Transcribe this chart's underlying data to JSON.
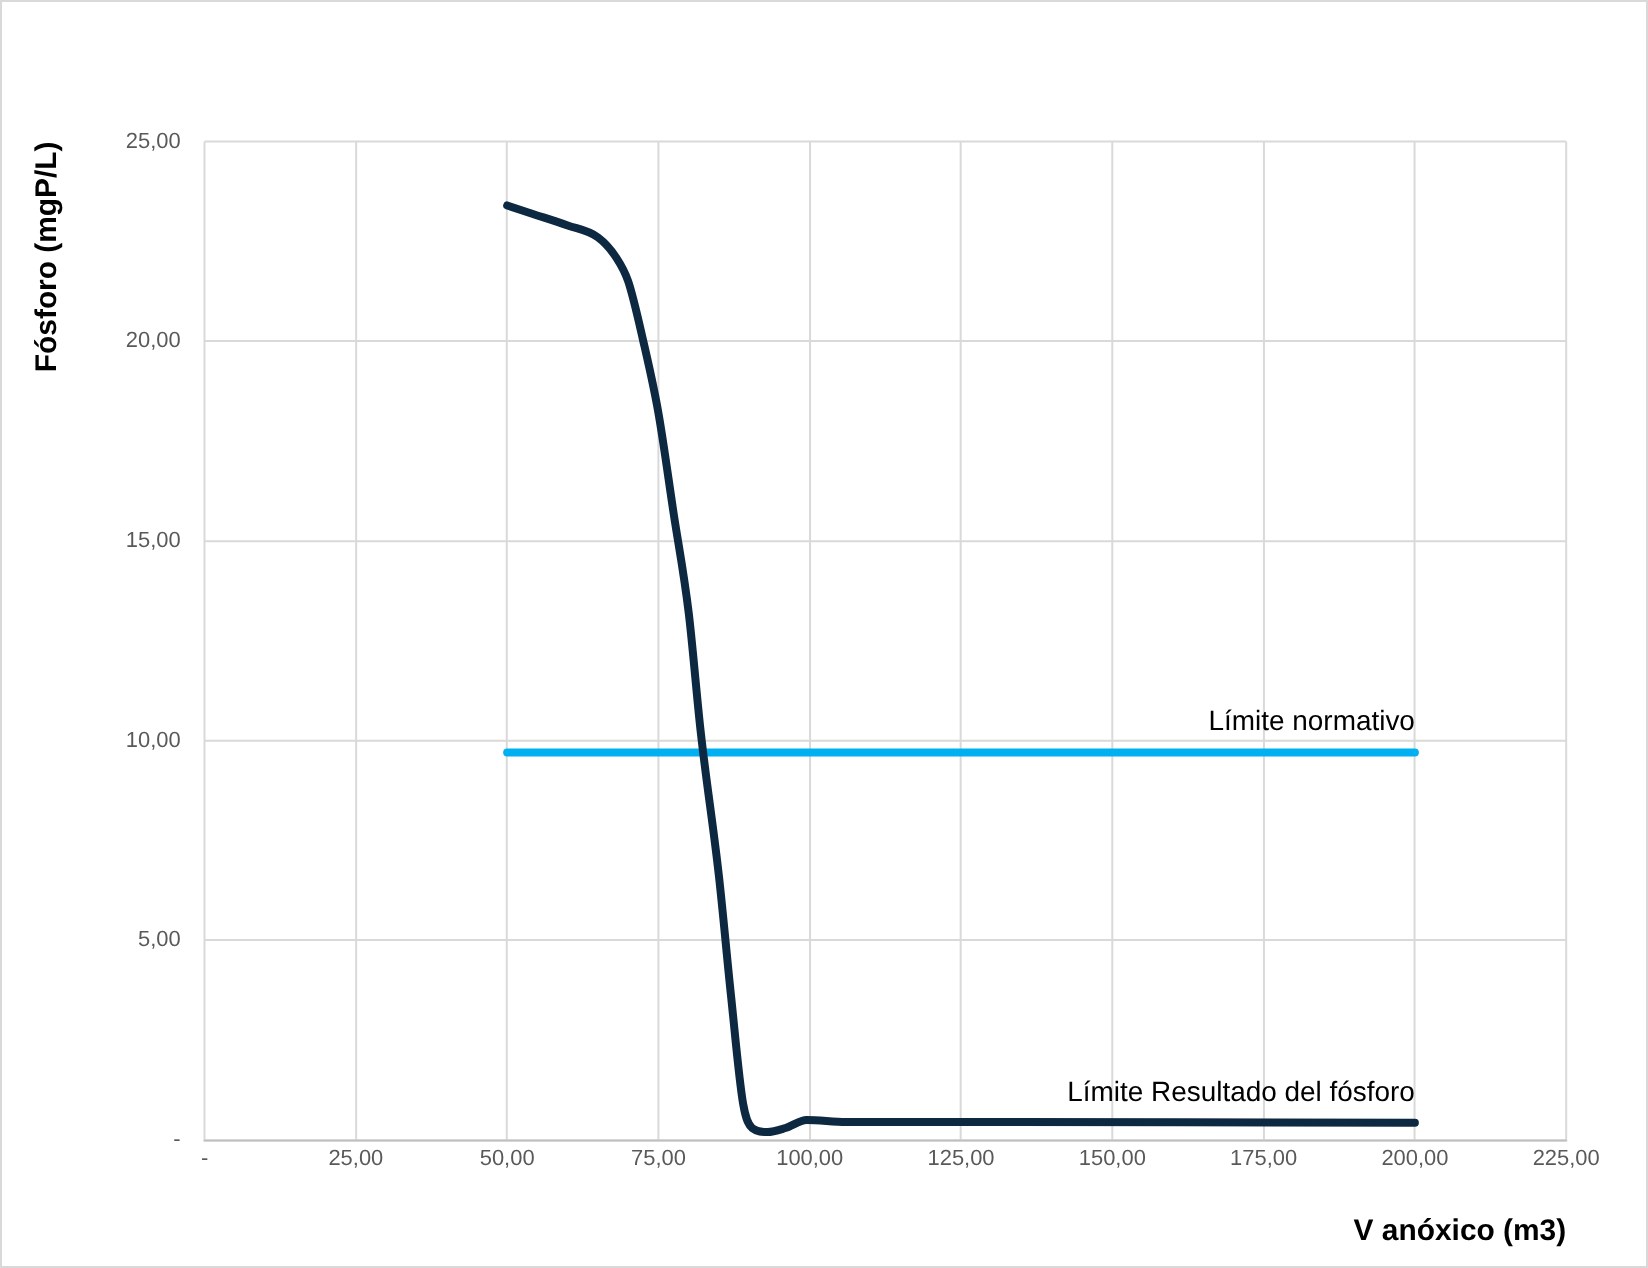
{
  "chart_data": {
    "type": "line",
    "xlabel": "V anóxico (m3)",
    "ylabel": "Fósforo (mgP/L)",
    "xlim": [
      0,
      225
    ],
    "xticks": [
      {
        "value": 0,
        "label": "-"
      },
      {
        "value": 25,
        "label": "25,00"
      },
      {
        "value": 50,
        "label": "50,00"
      },
      {
        "value": 75,
        "label": "75,00"
      },
      {
        "value": 100,
        "label": "100,00"
      },
      {
        "value": 125,
        "label": "125,00"
      },
      {
        "value": 150,
        "label": "150,00"
      },
      {
        "value": 175,
        "label": "175,00"
      },
      {
        "value": 200,
        "label": "200,00"
      },
      {
        "value": 225,
        "label": "225,00"
      }
    ],
    "ylim": [
      0,
      25
    ],
    "yticks": [
      {
        "value": 0,
        "label": "-"
      },
      {
        "value": 5,
        "label": "5,00"
      },
      {
        "value": 10,
        "label": "10,00"
      },
      {
        "value": 15,
        "label": "15,00"
      },
      {
        "value": 20,
        "label": "20,00"
      },
      {
        "value": 25,
        "label": "25,00"
      }
    ],
    "grid": true,
    "legend": false,
    "marker": "none",
    "line_style": "solid",
    "series": [
      {
        "name": "Límite Resultado del fósforo",
        "color": "#0d2841",
        "x": [
          50,
          54,
          60,
          65,
          68,
          70,
          72.5,
          75,
          77.5,
          80,
          82,
          85,
          87,
          89,
          90.5,
          93,
          96,
          99.5,
          106,
          132,
          200
        ],
        "values": [
          23.4,
          23.2,
          22.9,
          22.6,
          22.1,
          21.5,
          20,
          18.2,
          15.7,
          13.2,
          10.2,
          6.6,
          3.6,
          0.9,
          0.3,
          0.2,
          0.3,
          0.5,
          0.45,
          0.45,
          0.43
        ]
      },
      {
        "name": "Límite normativo",
        "color": "#00b0f0",
        "x": [
          50,
          200
        ],
        "values": [
          9.7,
          9.7
        ]
      }
    ]
  }
}
